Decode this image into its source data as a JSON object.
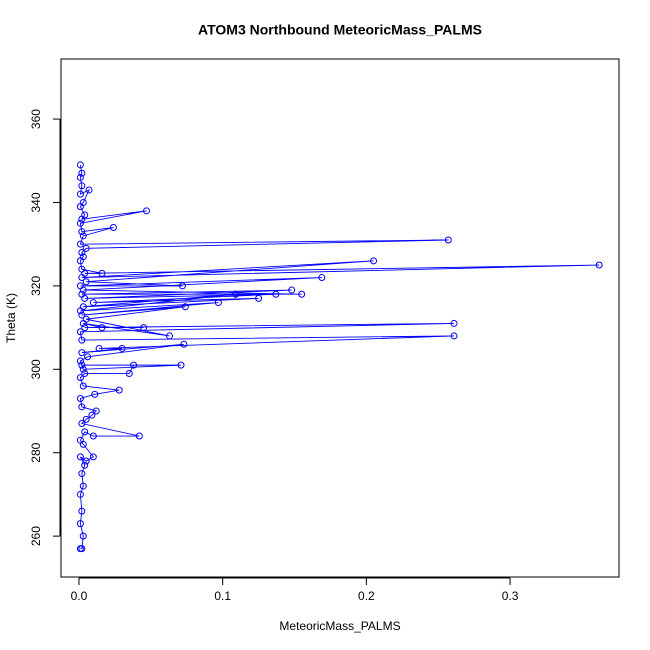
{
  "chart_data": {
    "type": "line",
    "markers": true,
    "title": "ATOM3 Northbound MeteoricMass_PALMS",
    "x_label": "MeteoricMass_PALMS",
    "y_label": "Theta (K)",
    "color": "#0000ff",
    "xlim": [
      -0.0125,
      0.3758
    ],
    "ylim": [
      250.2,
      374.4
    ],
    "xticks": [
      {
        "value": 0,
        "label": "0.0"
      },
      0.1,
      0.2,
      0.3
    ],
    "yticks": [
      260,
      280,
      300,
      320,
      340,
      360
    ],
    "x": [
      0.001,
      0.002,
      0.003,
      0.001,
      0.002,
      0.001,
      0.003,
      0.002,
      0.004,
      0.001,
      0.005,
      0.01,
      0.003,
      0.001,
      0.004,
      0.01,
      0.042,
      0.002,
      0.005,
      0.009,
      0.012,
      0.002,
      0.001,
      0.011,
      0.028,
      0.003,
      0.001,
      0.004,
      0.035,
      0.038,
      0.002,
      0.071,
      0.003,
      0.001,
      0.006,
      0.073,
      0.002,
      0.03,
      0.014,
      0.261,
      0.002,
      0.001,
      0.261,
      0.004,
      0.045,
      0.016,
      0.003,
      0.063,
      0.005,
      0.074,
      0.002,
      0.097,
      0.001,
      0.109,
      0.003,
      0.125,
      0.01,
      0.137,
      0.004,
      0.148,
      0.002,
      0.155,
      0.003,
      0.169,
      0.001,
      0.072,
      0.005,
      0.205,
      0.002,
      0.362,
      0.004,
      0.016,
      0.002,
      0.001,
      0.003,
      0.002,
      0.005,
      0.257,
      0.001,
      0.003,
      0.024,
      0.002,
      0.001,
      0.047,
      0.002,
      0.004,
      0.001,
      0.003,
      0.007,
      0.001,
      0.002,
      0.001,
      0.002,
      0.001
    ],
    "y": [
      257,
      257,
      260,
      263,
      266,
      270,
      272,
      275,
      277,
      279,
      278,
      279,
      282,
      283,
      285,
      284,
      284,
      287,
      288,
      289,
      290,
      291,
      293,
      294,
      295,
      296,
      298,
      299,
      299,
      301,
      301,
      301,
      300,
      302,
      303,
      306,
      304,
      305,
      305,
      308,
      307,
      309,
      311,
      310,
      310,
      310,
      311,
      308,
      312,
      315,
      313,
      316,
      314,
      318,
      315,
      317,
      316,
      318,
      317,
      319,
      318,
      318,
      319,
      322,
      320,
      320,
      321,
      326,
      322,
      325,
      323,
      323,
      324,
      326,
      327,
      328,
      329,
      331,
      330,
      332,
      334,
      333,
      335,
      338,
      336,
      337,
      339,
      340,
      343,
      342,
      344,
      346,
      347,
      349
    ]
  }
}
